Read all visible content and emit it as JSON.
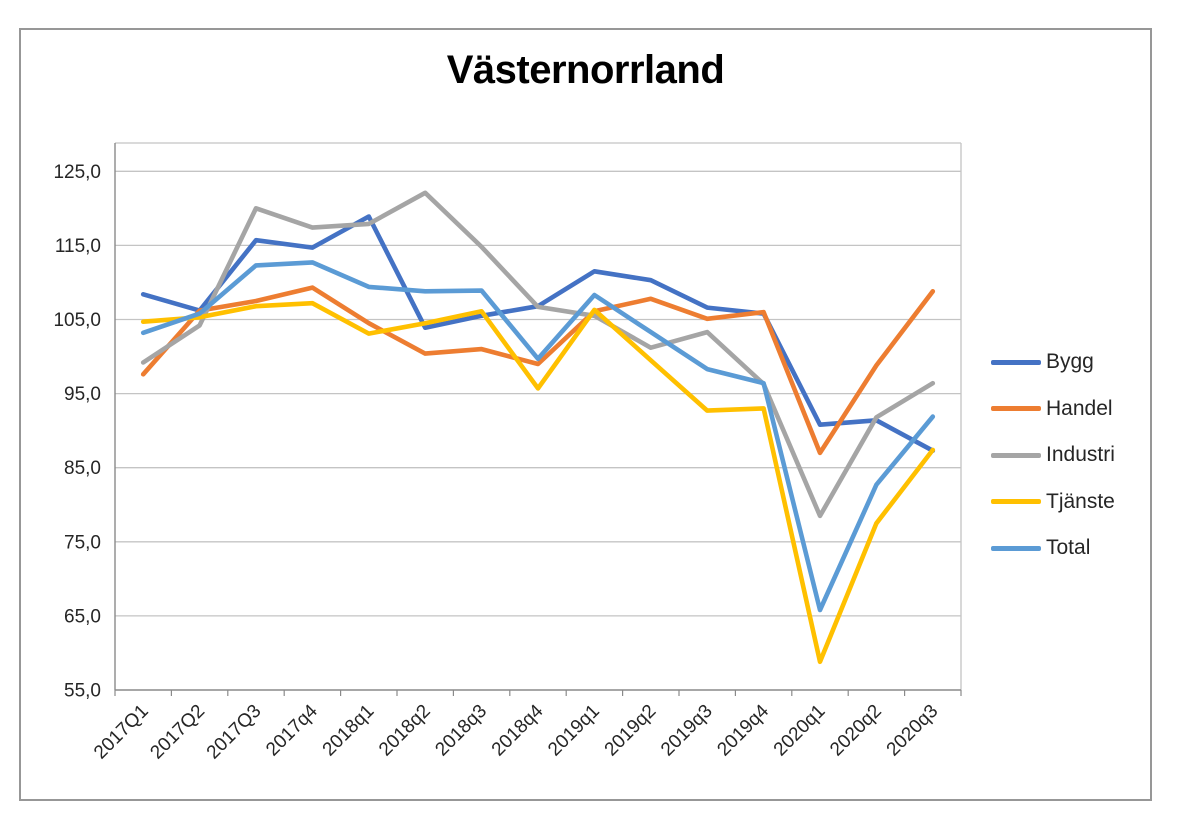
{
  "title": "Västernorrland",
  "chart_data": {
    "type": "line",
    "title": "Västernorrland",
    "categories": [
      "2017Q1",
      "2017Q2",
      "2017Q3",
      "2017q4",
      "2018q1",
      "2018q2",
      "2018q3",
      "2018q4",
      "2019q1",
      "2019q2",
      "2019q3",
      "2019q4",
      "2020q1",
      "2020q2",
      "2020q3"
    ],
    "series": [
      {
        "name": "Bygg",
        "color": "#4472C4",
        "values": [
          108.4,
          106.2,
          115.7,
          114.7,
          118.9,
          103.9,
          105.5,
          106.8,
          111.5,
          110.3,
          106.6,
          105.8,
          90.8,
          91.4,
          87.3
        ]
      },
      {
        "name": "Handel",
        "color": "#ED7D31",
        "values": [
          97.6,
          106.2,
          107.5,
          109.3,
          104.5,
          100.4,
          101.0,
          99.0,
          106.1,
          107.8,
          105.1,
          106.0,
          87.0,
          98.8,
          108.8
        ]
      },
      {
        "name": "Industri",
        "color": "#A5A5A5",
        "values": [
          99.2,
          104.2,
          120.0,
          117.4,
          117.9,
          122.1,
          114.8,
          106.7,
          105.5,
          101.2,
          103.3,
          96.3,
          78.5,
          91.8,
          96.4
        ]
      },
      {
        "name": "Tjänste",
        "color": "#FFC000",
        "values": [
          104.7,
          105.3,
          106.8,
          107.2,
          103.1,
          104.5,
          106.1,
          95.7,
          106.3,
          99.5,
          92.7,
          93.0,
          58.8,
          77.5,
          87.4
        ]
      },
      {
        "name": "Total",
        "color": "#5B9BD5",
        "values": [
          103.2,
          105.8,
          112.3,
          112.7,
          109.4,
          108.8,
          108.9,
          99.7,
          108.3,
          103.3,
          98.3,
          96.4,
          65.8,
          82.7,
          91.9
        ]
      }
    ],
    "y_axis": {
      "min": 55,
      "max": 125,
      "major_unit": 10,
      "ticks": [
        {
          "label": "125,0",
          "value": 125
        },
        {
          "label": "115,0",
          "value": 115
        },
        {
          "label": "105,0",
          "value": 105
        },
        {
          "label": "95,0",
          "value": 95
        },
        {
          "label": "85,0",
          "value": 85
        },
        {
          "label": "75,0",
          "value": 75
        },
        {
          "label": "65,0",
          "value": 65
        },
        {
          "label": "55,0",
          "value": 55
        }
      ]
    },
    "x_axis": {
      "label_rotation_deg": -45
    },
    "legend": {
      "position": "right",
      "entries": [
        "Bygg",
        "Handel",
        "Industri",
        "Tjänste",
        "Total"
      ]
    },
    "grid": "horizontal-major",
    "colors": {
      "gridline": "#C4C4C4",
      "plot_border": "#C4C4C4",
      "axis_line": "#8A8A8A",
      "text": "#262626",
      "title_text": "#000000",
      "frame_border": "#979797"
    }
  }
}
